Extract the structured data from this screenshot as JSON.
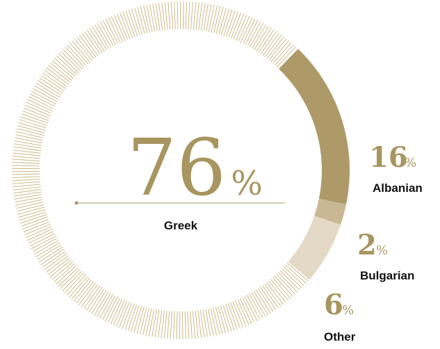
{
  "chart_data": {
    "type": "pie",
    "style": "donut",
    "slices": [
      {
        "label": "Greek",
        "value": 76,
        "value_text": "76",
        "unit": "%",
        "color": "#c8b17a"
      },
      {
        "label": "Albanian",
        "value": 16,
        "value_text": "16",
        "unit": "%",
        "color": "#ad9a68"
      },
      {
        "label": "Bulgarian",
        "value": 2,
        "value_text": "2",
        "unit": "%",
        "color": "#c9b893"
      },
      {
        "label": "Other",
        "value": 6,
        "value_text": "6",
        "unit": "%",
        "color": "#e4d9c5"
      }
    ],
    "label_color": "#a8955f",
    "text_color": "#111111"
  }
}
